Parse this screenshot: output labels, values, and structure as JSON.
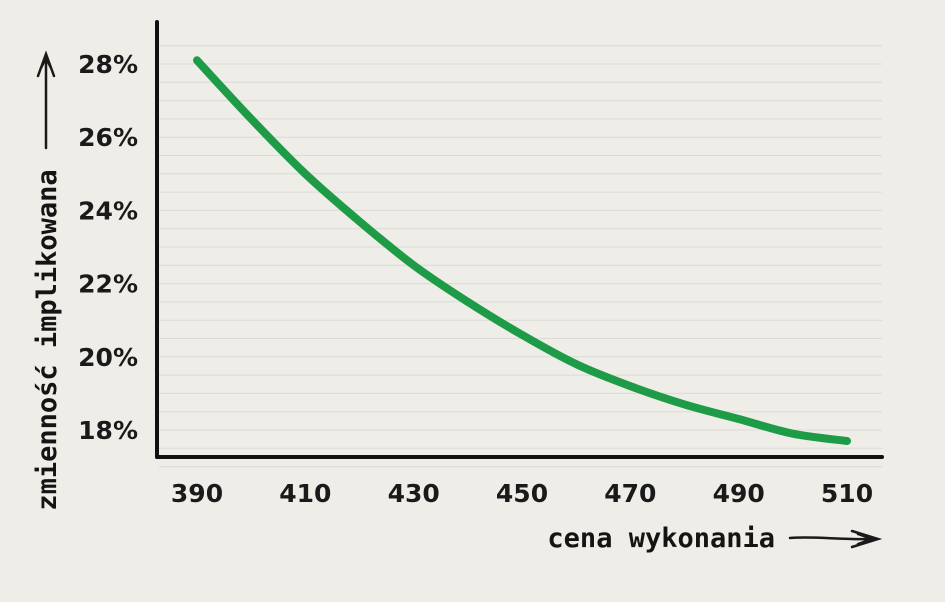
{
  "chart_data": {
    "type": "line",
    "title": "",
    "xlabel": "cena wykonania",
    "ylabel": "zmienność implikowana",
    "x_ticks": [
      390,
      410,
      430,
      450,
      470,
      490,
      510
    ],
    "y_ticks": [
      18,
      20,
      22,
      24,
      26,
      28
    ],
    "y_tick_labels": [
      "18%",
      "20%",
      "22%",
      "24%",
      "26%",
      "28%"
    ],
    "x_tick_labels": [
      "390",
      "410",
      "430",
      "450",
      "470",
      "490",
      "510"
    ],
    "xlim": [
      384,
      516
    ],
    "ylim": [
      17.0,
      28.8
    ],
    "grid": "horizontal",
    "series": [
      {
        "color": "#1e9b46",
        "x": [
          390,
          400,
          410,
          420,
          430,
          440,
          450,
          460,
          470,
          480,
          490,
          500,
          510
        ],
        "y": [
          28.1,
          26.5,
          25.0,
          23.7,
          22.5,
          21.5,
          20.6,
          19.8,
          19.2,
          18.7,
          18.3,
          17.9,
          17.7
        ]
      }
    ],
    "colors": {
      "background": "#efede8",
      "axis": "#111111",
      "grid": "#dcdad4",
      "line": "#1e9b46"
    }
  }
}
